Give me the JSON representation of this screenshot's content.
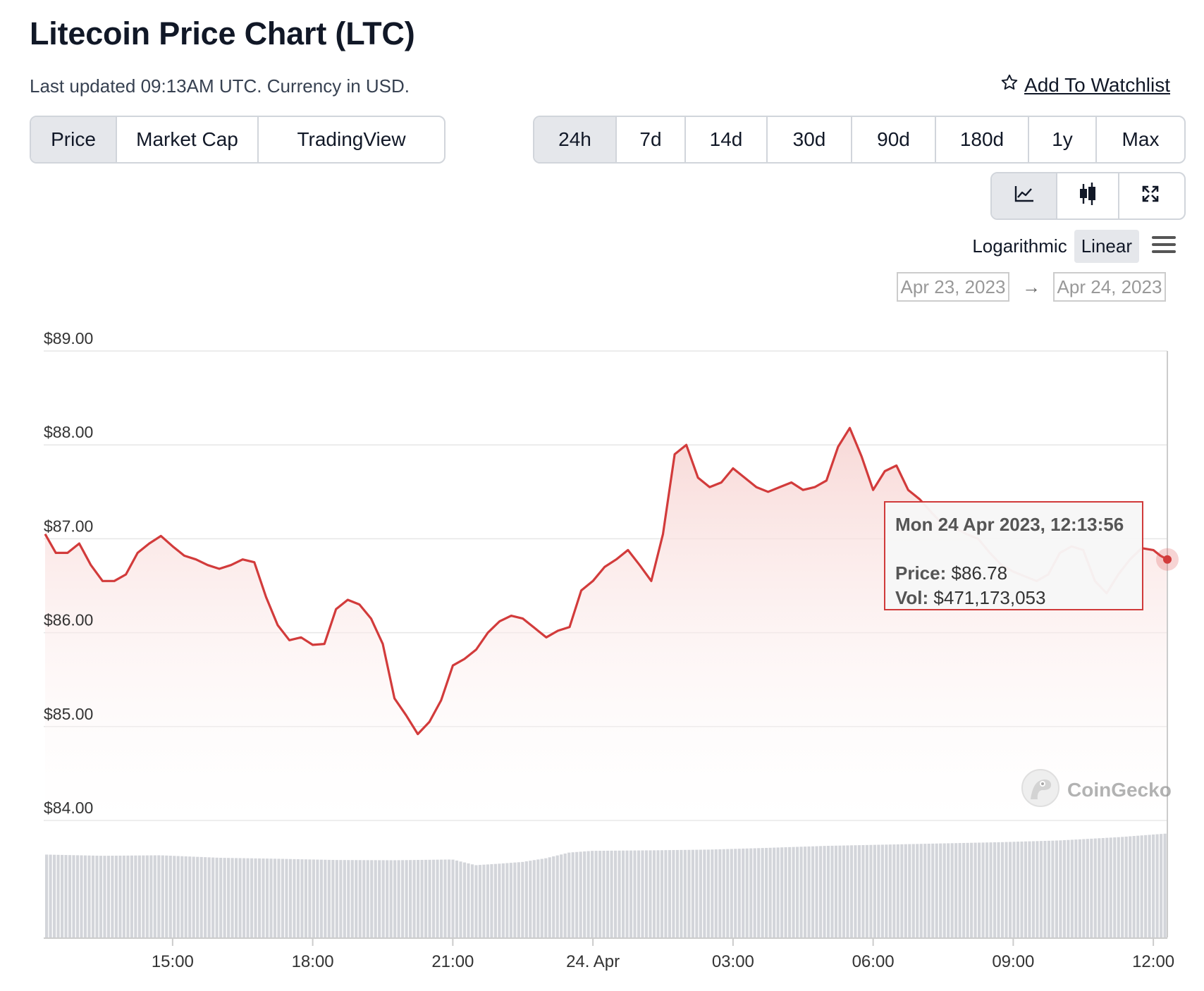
{
  "header": {
    "title": "Litecoin Price Chart (LTC)",
    "subtitle": "Last updated 09:13AM UTC. Currency in USD.",
    "watchlist_label": "Add To Watchlist"
  },
  "tabs": [
    {
      "label": "Price",
      "active": true
    },
    {
      "label": "Market Cap",
      "active": false
    },
    {
      "label": "TradingView",
      "active": false
    }
  ],
  "ranges": [
    {
      "label": "24h",
      "active": true
    },
    {
      "label": "7d",
      "active": false
    },
    {
      "label": "14d",
      "active": false
    },
    {
      "label": "30d",
      "active": false
    },
    {
      "label": "90d",
      "active": false
    },
    {
      "label": "180d",
      "active": false
    },
    {
      "label": "1y",
      "active": false
    },
    {
      "label": "Max",
      "active": false
    }
  ],
  "tools": [
    {
      "icon": "line-chart-icon",
      "active": true
    },
    {
      "icon": "candlestick-icon",
      "active": false
    },
    {
      "icon": "fullscreen-icon",
      "active": false
    }
  ],
  "scale": {
    "log_label": "Logarithmic",
    "linear_label": "Linear",
    "selected": "Linear"
  },
  "date_range": {
    "from": "Apr 23, 2023",
    "arrow": "→",
    "to": "Apr 24, 2023"
  },
  "tooltip": {
    "title": "Mon 24 Apr 2023, 12:13:56",
    "price_label": "Price:",
    "price_value": "$86.78",
    "vol_label": "Vol:",
    "vol_value": "$471,173,053"
  },
  "watermark": "CoinGecko",
  "colors": {
    "line": "#d23b3b",
    "fill_top": "#f7d4d2",
    "volume": "#d3d5da",
    "active_btn": "#e5e7eb",
    "grid": "#e6e6e6"
  },
  "chart_data": {
    "type": "line",
    "ylim": [
      84,
      89
    ],
    "y_ticks": [
      "$89.00",
      "$88.00",
      "$87.00",
      "$86.00",
      "$85.00",
      "$84.00"
    ],
    "x_ticks": [
      "15:00",
      "18:00",
      "21:00",
      "24. Apr",
      "03:00",
      "06:00",
      "09:00",
      "12:00"
    ],
    "x_tick_hours": [
      15,
      18,
      21,
      24,
      27,
      30,
      33,
      36
    ],
    "x_range_hours": [
      12.27,
      36.3
    ],
    "series": [
      {
        "x": [
          12.27,
          12.5,
          12.75,
          13.0,
          13.25,
          13.5,
          13.75,
          14.0,
          14.25,
          14.5,
          14.75,
          15.0,
          15.25,
          15.5,
          15.75,
          16.0,
          16.25,
          16.5,
          16.75,
          17.0,
          17.25,
          17.5,
          17.75,
          18.0,
          18.25,
          18.5,
          18.75,
          19.0,
          19.25,
          19.5,
          19.75,
          20.0,
          20.25,
          20.5,
          20.75,
          21.0,
          21.25,
          21.5,
          21.75,
          22.0,
          22.25,
          22.5,
          22.75,
          23.0,
          23.25,
          23.5,
          23.75,
          24.0,
          24.25,
          24.5,
          24.75,
          25.0,
          25.25,
          25.5,
          25.75,
          26.0,
          26.25,
          26.5,
          26.75,
          27.0,
          27.25,
          27.5,
          27.75,
          28.0,
          28.25,
          28.5,
          28.75,
          29.0,
          29.25,
          29.5,
          29.75,
          30.0,
          30.25,
          30.5,
          30.75,
          31.0,
          31.25,
          31.5,
          31.75,
          32.0,
          32.25,
          32.5,
          32.75,
          33.0,
          33.25,
          33.5,
          33.75,
          34.0,
          34.25,
          34.5,
          34.75,
          35.0,
          35.25,
          35.5,
          35.75,
          36.0,
          36.15,
          36.3
        ],
        "values": [
          87.05,
          86.85,
          86.85,
          86.95,
          86.72,
          86.55,
          86.55,
          86.62,
          86.85,
          86.95,
          87.03,
          86.92,
          86.82,
          86.78,
          86.72,
          86.68,
          86.72,
          86.78,
          86.75,
          86.38,
          86.08,
          85.92,
          85.95,
          85.87,
          85.88,
          86.25,
          86.35,
          86.3,
          86.15,
          85.88,
          85.3,
          85.12,
          84.92,
          85.05,
          85.28,
          85.65,
          85.72,
          85.82,
          86.0,
          86.12,
          86.18,
          86.15,
          86.05,
          85.95,
          86.02,
          86.06,
          86.45,
          86.55,
          86.7,
          86.78,
          86.88,
          86.72,
          86.55,
          87.05,
          87.9,
          88.0,
          87.65,
          87.55,
          87.6,
          87.75,
          87.65,
          87.55,
          87.5,
          87.55,
          87.6,
          87.52,
          87.55,
          87.62,
          87.98,
          88.18,
          87.88,
          87.52,
          87.72,
          87.78,
          87.52,
          87.42,
          87.28,
          87.15,
          87.12,
          87.05,
          87.0,
          86.85,
          86.72,
          86.65,
          86.6,
          86.55,
          86.62,
          86.85,
          86.92,
          86.88,
          86.55,
          86.42,
          86.62,
          86.78,
          86.9,
          86.88,
          86.82,
          86.78
        ]
      }
    ],
    "volume": {
      "x": [
        12.27,
        13.5,
        14.75,
        16.0,
        17.25,
        18.5,
        19.75,
        21.0,
        21.5,
        22.0,
        22.5,
        23.0,
        23.5,
        24.0,
        25.25,
        26.5,
        27.75,
        29.0,
        30.25,
        31.5,
        32.75,
        34.0,
        35.25,
        36.3
      ],
      "values": [
        335,
        330,
        332,
        322,
        318,
        313,
        312,
        315,
        292,
        298,
        305,
        320,
        343,
        350,
        352,
        355,
        362,
        370,
        375,
        380,
        385,
        392,
        405,
        420
      ],
      "range": [
        0,
        470
      ]
    }
  }
}
